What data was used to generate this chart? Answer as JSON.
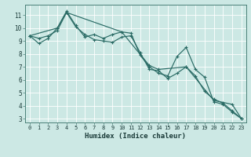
{
  "title": "",
  "xlabel": "Humidex (Indice chaleur)",
  "background_color": "#cce8e4",
  "grid_color": "#ffffff",
  "line_color": "#2a6b65",
  "xlim": [
    -0.5,
    23.5
  ],
  "ylim": [
    2.7,
    11.8
  ],
  "yticks": [
    3,
    4,
    5,
    6,
    7,
    8,
    9,
    10,
    11
  ],
  "xticks": [
    0,
    1,
    2,
    3,
    4,
    5,
    6,
    7,
    8,
    9,
    10,
    11,
    12,
    13,
    14,
    15,
    16,
    17,
    18,
    19,
    20,
    21,
    22,
    23
  ],
  "lines": [
    {
      "x": [
        0,
        1,
        2,
        3,
        4,
        5,
        6,
        7,
        8,
        9,
        10,
        11,
        12,
        13,
        14,
        15,
        16,
        17,
        18,
        19,
        20,
        21,
        22,
        23
      ],
      "y": [
        9.4,
        8.8,
        9.2,
        10.0,
        11.3,
        10.2,
        9.3,
        9.5,
        9.2,
        9.5,
        9.7,
        9.6,
        7.9,
        7.0,
        6.5,
        6.3,
        7.8,
        8.5,
        6.8,
        6.2,
        4.3,
        4.1,
        3.5,
        3.0
      ]
    },
    {
      "x": [
        0,
        1,
        2,
        3,
        4,
        5,
        6,
        7,
        8,
        9,
        10,
        11,
        12,
        13,
        14,
        15,
        16,
        17,
        18,
        19,
        20,
        21,
        22,
        23
      ],
      "y": [
        9.4,
        9.2,
        9.4,
        9.8,
        11.2,
        10.1,
        9.5,
        9.1,
        9.0,
        8.9,
        9.3,
        9.4,
        8.1,
        6.8,
        6.7,
        6.1,
        6.5,
        7.0,
        6.3,
        5.1,
        4.5,
        4.2,
        3.6,
        3.0
      ]
    },
    {
      "x": [
        0,
        3,
        4,
        10,
        13,
        14,
        17,
        20,
        22,
        23
      ],
      "y": [
        9.4,
        10.0,
        11.2,
        9.7,
        7.1,
        6.8,
        7.0,
        4.4,
        4.1,
        3.0
      ]
    }
  ],
  "xlabel_fontsize": 6.5,
  "tick_fontsize": 5.0
}
